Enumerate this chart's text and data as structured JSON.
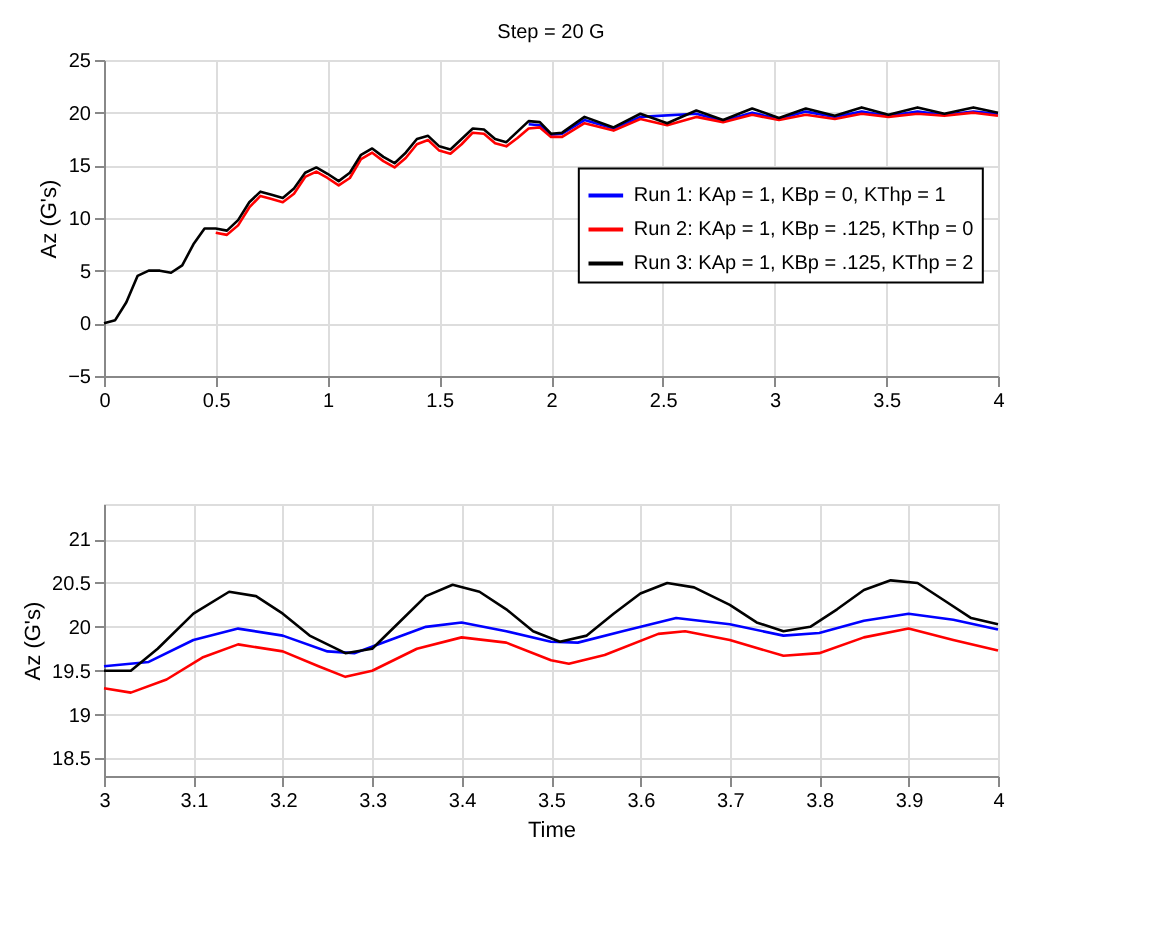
{
  "chart_data": [
    {
      "type": "line",
      "title": "Step = 20 G",
      "ylabel": "Az (G's)",
      "xlim": [
        0,
        4
      ],
      "ylim": [
        -5,
        25
      ],
      "xticks": [
        0,
        0.5,
        1,
        1.5,
        2,
        2.5,
        3,
        3.5,
        4
      ],
      "yticks": [
        -5,
        0,
        5,
        10,
        15,
        20,
        25
      ],
      "grid": true,
      "legend": "right",
      "line_style": "solid",
      "marker": "none",
      "x": [
        0,
        0.05,
        0.1,
        0.15,
        0.2,
        0.25,
        0.3,
        0.35,
        0.4,
        0.45,
        0.5,
        0.55,
        0.6,
        0.65,
        0.7,
        0.75,
        0.8,
        0.85,
        0.9,
        0.95,
        1.0,
        1.05,
        1.1,
        1.15,
        1.2,
        1.25,
        1.3,
        1.35,
        1.4,
        1.45,
        1.5,
        1.55,
        1.6,
        1.65,
        1.7,
        1.75,
        1.8,
        1.85,
        1.9,
        1.95,
        2.0,
        2.05,
        2.15,
        2.28,
        2.4,
        2.52,
        2.65,
        2.77,
        2.9,
        3.02,
        3.14,
        3.27,
        3.39,
        3.51,
        3.64,
        3.76,
        3.89,
        4.0
      ],
      "series": [
        {
          "name": "Run 1: KAp = 1, KBp = 0, KThp = 1",
          "color": "#0000ff",
          "values": [
            null,
            null,
            null,
            null,
            null,
            null,
            null,
            null,
            null,
            null,
            null,
            null,
            null,
            null,
            null,
            null,
            null,
            null,
            null,
            null,
            null,
            null,
            null,
            null,
            null,
            null,
            null,
            null,
            null,
            null,
            null,
            null,
            null,
            null,
            null,
            null,
            null,
            null,
            18.9,
            18.8,
            17.9,
            18.0,
            19.3,
            18.5,
            19.6,
            null,
            19.9,
            19.2,
            20.0,
            19.4,
            20.1,
            19.6,
            20.1,
            19.7,
            20.1,
            19.8,
            20.1,
            19.9
          ]
        },
        {
          "name": "Run 2: KAp = 1, KBp = .125, KThp = 0",
          "color": "#ff0000",
          "values": [
            null,
            null,
            null,
            null,
            null,
            null,
            null,
            null,
            null,
            null,
            8.6,
            8.4,
            9.3,
            11.0,
            12.1,
            11.8,
            11.5,
            12.3,
            13.9,
            14.4,
            13.8,
            13.1,
            13.8,
            15.6,
            16.2,
            15.4,
            14.8,
            15.7,
            17.0,
            17.4,
            16.4,
            16.1,
            17.0,
            18.1,
            18.0,
            17.1,
            16.8,
            17.6,
            18.5,
            18.6,
            17.7,
            17.7,
            19.0,
            18.3,
            19.4,
            18.8,
            19.6,
            19.1,
            19.8,
            19.3,
            19.8,
            19.4,
            19.9,
            19.6,
            19.9,
            19.7,
            20.0,
            19.7
          ]
        },
        {
          "name": "Run 3: KAp = 1, KBp = .125, KThp = 2",
          "color": "#000000",
          "values": [
            0,
            0.3,
            2,
            4.5,
            5,
            5,
            4.8,
            5.5,
            7.5,
            9,
            9,
            8.8,
            9.8,
            11.5,
            12.5,
            12.2,
            11.9,
            12.8,
            14.3,
            14.8,
            14.2,
            13.5,
            14.3,
            16,
            16.6,
            15.8,
            15.2,
            16.2,
            17.5,
            17.8,
            16.8,
            16.5,
            17.5,
            18.5,
            18.4,
            17.5,
            17.2,
            18.2,
            19.2,
            19.1,
            18.0,
            18.1,
            19.6,
            18.6,
            19.9,
            19.0,
            20.2,
            19.3,
            20.4,
            19.5,
            20.4,
            19.7,
            20.5,
            19.8,
            20.5,
            19.9,
            20.5,
            20.0
          ]
        }
      ]
    },
    {
      "type": "line",
      "xlabel": "Time",
      "ylabel": "Az (G's)",
      "xlim": [
        3,
        4
      ],
      "ylim": [
        18.3,
        21.4
      ],
      "xticks": [
        3,
        3.1,
        3.2,
        3.3,
        3.4,
        3.5,
        3.6,
        3.7,
        3.8,
        3.9,
        4
      ],
      "yticks": [
        18.5,
        19,
        19.5,
        20,
        20.5,
        21
      ],
      "grid": true,
      "line_style": "solid",
      "marker": "none",
      "series": [
        {
          "color": "#0000ff",
          "x": [
            3.0,
            3.05,
            3.1,
            3.15,
            3.2,
            3.25,
            3.28,
            3.32,
            3.36,
            3.4,
            3.45,
            3.5,
            3.53,
            3.58,
            3.64,
            3.7,
            3.76,
            3.8,
            3.85,
            3.9,
            3.95,
            4.0
          ],
          "values": [
            19.55,
            19.6,
            19.85,
            19.98,
            19.9,
            19.72,
            19.7,
            19.85,
            20.0,
            20.05,
            19.95,
            19.83,
            19.82,
            19.95,
            20.1,
            20.03,
            19.9,
            19.93,
            20.07,
            20.15,
            20.08,
            19.97
          ]
        },
        {
          "color": "#ff0000",
          "x": [
            3.0,
            3.03,
            3.07,
            3.11,
            3.15,
            3.2,
            3.24,
            3.27,
            3.3,
            3.35,
            3.4,
            3.45,
            3.5,
            3.52,
            3.56,
            3.62,
            3.65,
            3.7,
            3.76,
            3.8,
            3.85,
            3.9,
            3.95,
            4.0
          ],
          "values": [
            19.3,
            19.25,
            19.4,
            19.65,
            19.8,
            19.72,
            19.55,
            19.43,
            19.5,
            19.75,
            19.88,
            19.82,
            19.62,
            19.58,
            19.68,
            19.92,
            19.95,
            19.85,
            19.67,
            19.7,
            19.88,
            19.98,
            19.85,
            19.73
          ]
        },
        {
          "color": "#000000",
          "x": [
            3.0,
            3.03,
            3.06,
            3.1,
            3.14,
            3.17,
            3.2,
            3.23,
            3.27,
            3.3,
            3.33,
            3.36,
            3.39,
            3.42,
            3.45,
            3.48,
            3.51,
            3.54,
            3.57,
            3.6,
            3.63,
            3.66,
            3.7,
            3.73,
            3.76,
            3.79,
            3.82,
            3.85,
            3.88,
            3.91,
            3.94,
            3.97,
            4.0
          ],
          "values": [
            19.5,
            19.5,
            19.75,
            20.15,
            20.4,
            20.35,
            20.15,
            19.9,
            19.7,
            19.75,
            20.05,
            20.35,
            20.48,
            20.4,
            20.2,
            19.95,
            19.83,
            19.9,
            20.15,
            20.38,
            20.5,
            20.45,
            20.25,
            20.05,
            19.95,
            20.0,
            20.2,
            20.42,
            20.53,
            20.5,
            20.3,
            20.1,
            20.03
          ]
        }
      ]
    }
  ]
}
